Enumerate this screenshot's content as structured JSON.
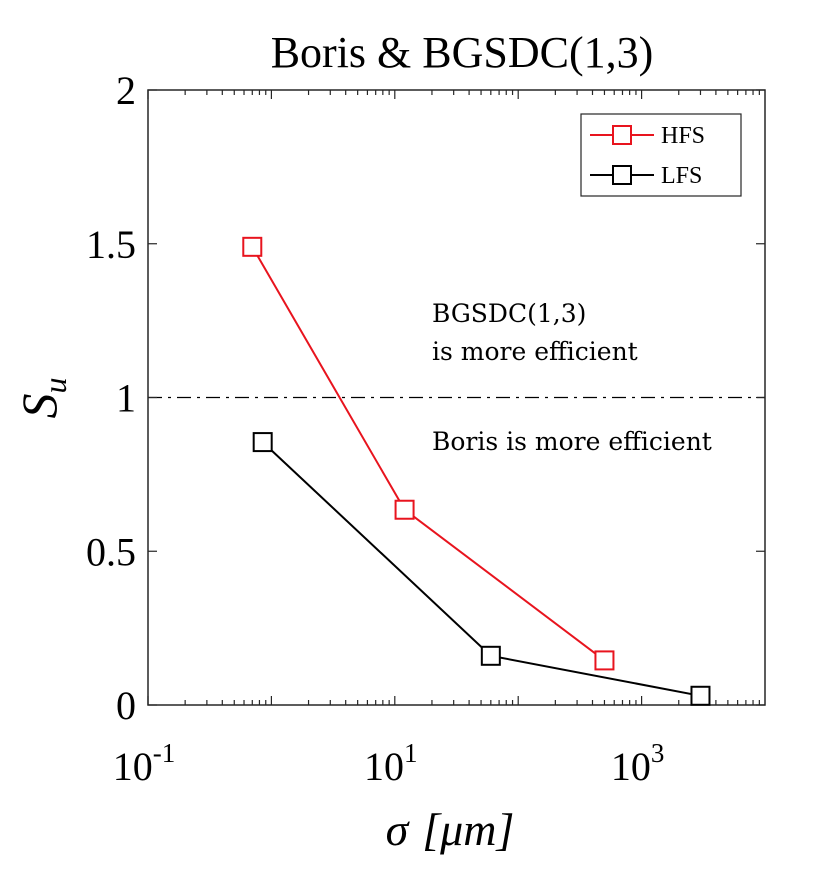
{
  "chart_data": {
    "type": "line",
    "title": "Boris & BGSDC(1,3)",
    "xlabel": "σ",
    "xlabel_unit": "[μm]",
    "ylabel_main": "S",
    "ylabel_sub": "u",
    "xscale": "log",
    "xlim": [
      0.1,
      10000
    ],
    "ylim": [
      0,
      2
    ],
    "x_ticks": [
      {
        "base": "10",
        "exp": "-1",
        "value": 0.1
      },
      {
        "base": "10",
        "exp": "1",
        "value": 10
      },
      {
        "base": "10",
        "exp": "3",
        "value": 1000
      }
    ],
    "y_ticks": [
      {
        "label": "0",
        "value": 0
      },
      {
        "label": "0.5",
        "value": 0.5
      },
      {
        "label": "1",
        "value": 1
      },
      {
        "label": "1.5",
        "value": 1.5
      },
      {
        "label": "2",
        "value": 2
      }
    ],
    "reference_line": {
      "y": 1,
      "style": "dash-dot"
    },
    "annotations": {
      "above_line_1": "BGSDC(1,3)",
      "above_line_2": "is more efficient",
      "below_line": "Boris is more efficient"
    },
    "series": [
      {
        "name": "HFS",
        "color": "#e8141e",
        "marker": "square",
        "x": [
          0.7,
          12,
          500
        ],
        "y": [
          1.49,
          0.635,
          0.145
        ]
      },
      {
        "name": "LFS",
        "color": "#000000",
        "marker": "square",
        "x": [
          0.85,
          60,
          3000
        ],
        "y": [
          0.855,
          0.16,
          0.03
        ]
      }
    ],
    "legend": "top-right",
    "grid": false
  }
}
